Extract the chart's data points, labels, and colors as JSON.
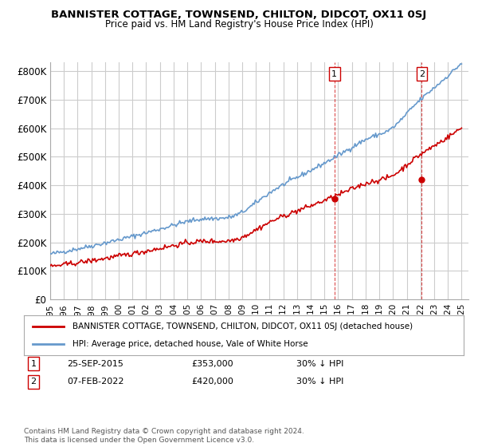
{
  "title": "BANNISTER COTTAGE, TOWNSEND, CHILTON, DIDCOT, OX11 0SJ",
  "subtitle": "Price paid vs. HM Land Registry's House Price Index (HPI)",
  "ylabel_ticks": [
    "£0",
    "£100K",
    "£200K",
    "£300K",
    "£400K",
    "£500K",
    "£600K",
    "£700K",
    "£800K"
  ],
  "ytick_values": [
    0,
    100000,
    200000,
    300000,
    400000,
    500000,
    600000,
    700000,
    800000
  ],
  "ylim": [
    0,
    830000
  ],
  "legend_line1": "BANNISTER COTTAGE, TOWNSEND, CHILTON, DIDCOT, OX11 0SJ (detached house)",
  "legend_line2": "HPI: Average price, detached house, Vale of White Horse",
  "transaction1_date": "25-SEP-2015",
  "transaction1_price": "£353,000",
  "transaction1_note": "30% ↓ HPI",
  "transaction2_date": "07-FEB-2022",
  "transaction2_price": "£420,000",
  "transaction2_note": "30% ↓ HPI",
  "footer": "Contains HM Land Registry data © Crown copyright and database right 2024.\nThis data is licensed under the Open Government Licence v3.0.",
  "line_color_property": "#cc0000",
  "line_color_hpi": "#6699cc",
  "background_color": "#ffffff",
  "grid_color": "#cccccc",
  "year_start": 1995,
  "year_end": 2025
}
